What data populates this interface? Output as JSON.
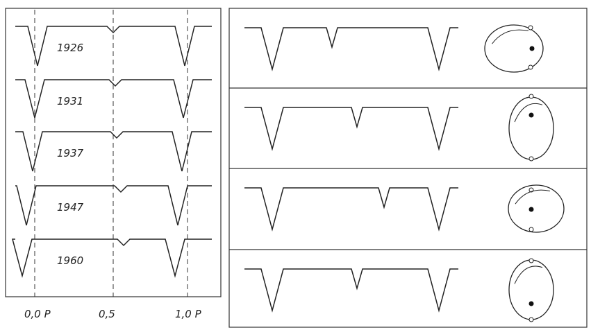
{
  "left_panel": {
    "years": [
      "1926",
      "1931",
      "1937",
      "1947",
      "1960"
    ]
  },
  "axis_labels": [
    "0,0 P",
    "0,5",
    "1,0 P"
  ]
}
